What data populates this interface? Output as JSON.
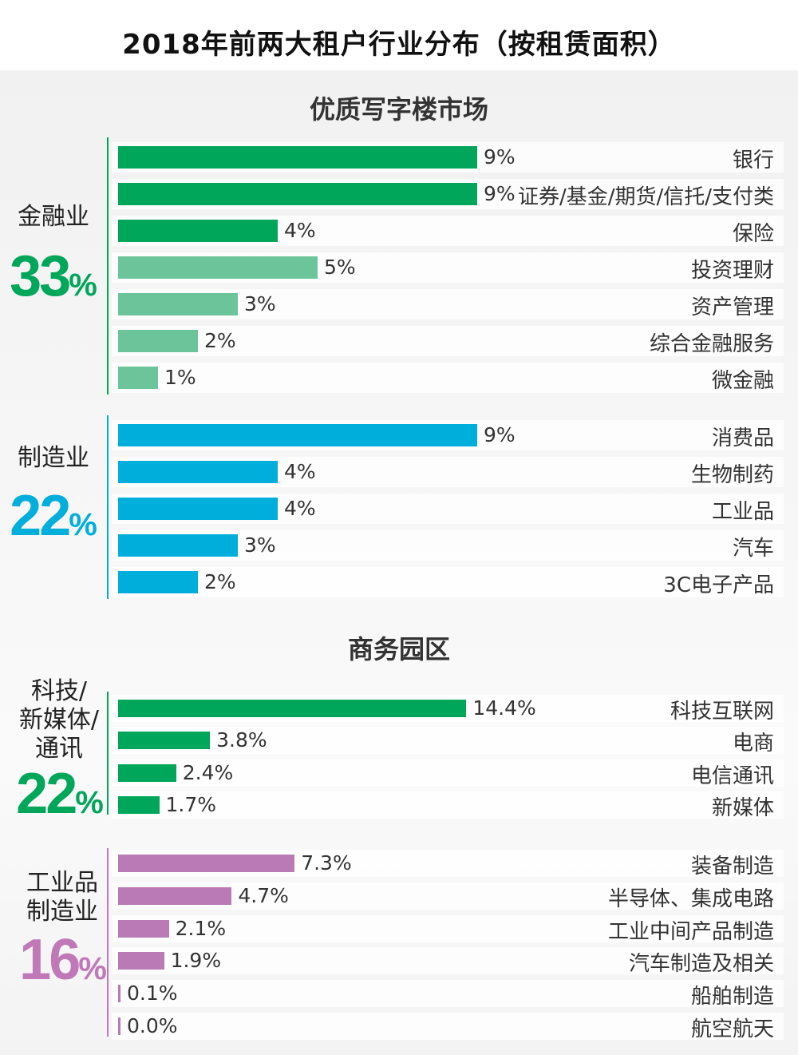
{
  "title": "2018年前两大租户行业分布（按租赁面积）",
  "chart_data": [
    {
      "type": "bar",
      "orientation": "horizontal",
      "section_title": "优质写字楼市场",
      "groups": [
        {
          "label": "金融业",
          "total": "33",
          "total_unit": "%",
          "color": "#00a65a",
          "categories": [
            "银行",
            "证券/基金/期货/信托/支付类",
            "保险",
            "投资理财",
            "资产管理",
            "综合金融服务",
            "微金融"
          ],
          "values": [
            9,
            9,
            4,
            5,
            3,
            2,
            1
          ],
          "value_labels": [
            "9%",
            "9%",
            "4%",
            "5%",
            "3%",
            "2%",
            "1%"
          ],
          "bar_colors": [
            "#00a65a",
            "#00a65a",
            "#00a65a",
            "#6cc59a",
            "#6cc59a",
            "#6cc59a",
            "#6cc59a"
          ]
        },
        {
          "label": "制造业",
          "total": "22",
          "total_unit": "%",
          "color": "#00aedc",
          "categories": [
            "消费品",
            "生物制药",
            "工业品",
            "汽车",
            "3C电子产品"
          ],
          "values": [
            9,
            4,
            4,
            3,
            2
          ],
          "value_labels": [
            "9%",
            "4%",
            "4%",
            "3%",
            "2%"
          ],
          "bar_colors": [
            "#00aedc",
            "#00aedc",
            "#00aedc",
            "#00aedc",
            "#00aedc"
          ]
        }
      ]
    },
    {
      "type": "bar",
      "orientation": "horizontal",
      "section_title": "商务园区",
      "groups": [
        {
          "label": "科技/新媒体/通讯",
          "label_lines": [
            "科技/",
            "新媒体/",
            "通讯"
          ],
          "total": "22",
          "total_unit": "%",
          "color": "#00a65a",
          "categories": [
            "科技互联网",
            "电商",
            "电信通讯",
            "新媒体"
          ],
          "values": [
            14.4,
            3.8,
            2.4,
            1.7
          ],
          "value_labels": [
            "14.4%",
            "3.8%",
            "2.4%",
            "1.7%"
          ],
          "bar_colors": [
            "#00a65a",
            "#00a65a",
            "#00a65a",
            "#00a65a"
          ]
        },
        {
          "label": "工业品制造业",
          "label_lines": [
            "工业品",
            "制造业"
          ],
          "total": "16",
          "total_unit": "%",
          "color": "#c178b8",
          "categories": [
            "装备制造",
            "半导体、集成电路",
            "工业中间产品制造",
            "汽车制造及相关",
            "船舶制造",
            "航空航天"
          ],
          "values": [
            7.3,
            4.7,
            2.1,
            1.9,
            0.1,
            0.0
          ],
          "value_labels": [
            "7.3%",
            "4.7%",
            "2.1%",
            "1.9%",
            "0.1%",
            "0.0%"
          ],
          "bar_colors": [
            "#b97ab5",
            "#b97ab5",
            "#b97ab5",
            "#b97ab5",
            "#b97ab5",
            "#b97ab5"
          ]
        }
      ]
    }
  ]
}
